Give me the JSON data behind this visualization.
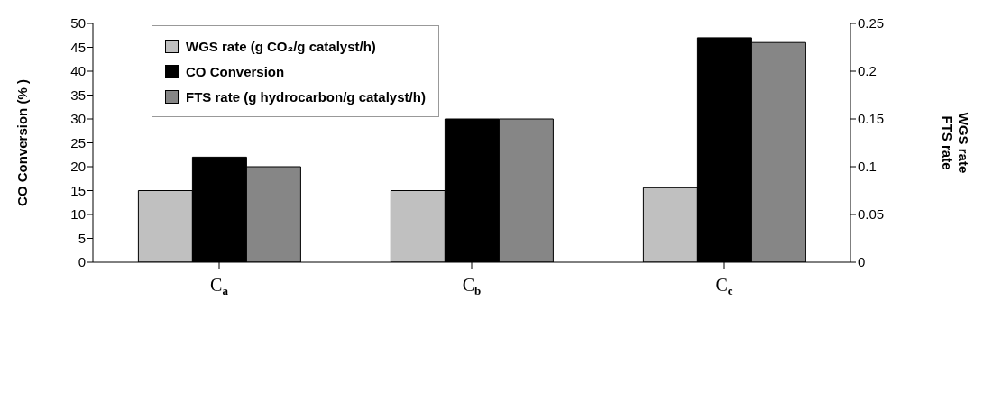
{
  "chart_data": {
    "type": "bar",
    "categories": [
      "C$_{a}$",
      "C$_{b}$",
      "C$_{c}$"
    ],
    "series": [
      {
        "name": "WGS rate (g CO₂/g catalyst/h)",
        "color": "#c0c0c0",
        "values": [
          0.075,
          0.075,
          0.078
        ],
        "axis": "y2"
      },
      {
        "name": "CO Conversion",
        "color": "#000000",
        "values": [
          22,
          30,
          47
        ]
      },
      {
        "name": "FTS rate (g hydrocarbon/g catalyst/h)",
        "color": "#868686",
        "values": [
          0.1,
          0.15,
          0.23
        ],
        "axis": "y2"
      }
    ],
    "ylabel": "CO Conversion  (% )",
    "y2label": "WGS rate\nFTS rate",
    "ylim": [
      0,
      50
    ],
    "yticks": [
      0,
      5,
      10,
      15,
      20,
      25,
      30,
      35,
      40,
      45,
      50
    ],
    "y2lim": [
      0,
      0.25
    ],
    "y2ticks": [
      0,
      0.05,
      0.1,
      0.15,
      0.2,
      0.25
    ],
    "grid": false,
    "legend": "top left"
  }
}
